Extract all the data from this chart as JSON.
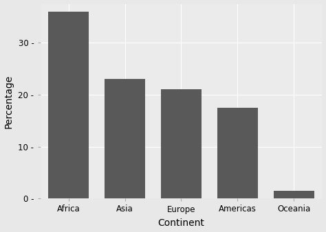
{
  "categories": [
    "Africa",
    "Asia",
    "Europe",
    "Americas",
    "Oceania"
  ],
  "values": [
    36.0,
    23.0,
    21.0,
    17.5,
    1.5
  ],
  "bar_color": "#595959",
  "outer_background": "#e8e8e8",
  "panel_background": "#ebebeb",
  "grid_color": "#ffffff",
  "xlabel": "Continent",
  "ylabel": "Percentage",
  "ylim": [
    0,
    37.5
  ],
  "yticks": [
    0,
    10,
    20,
    30
  ],
  "ytick_labels": [
    "0 -",
    "10 -",
    "20 -",
    "30 -"
  ],
  "bar_width": 0.72,
  "label_fontsize": 10,
  "tick_fontsize": 8.5
}
